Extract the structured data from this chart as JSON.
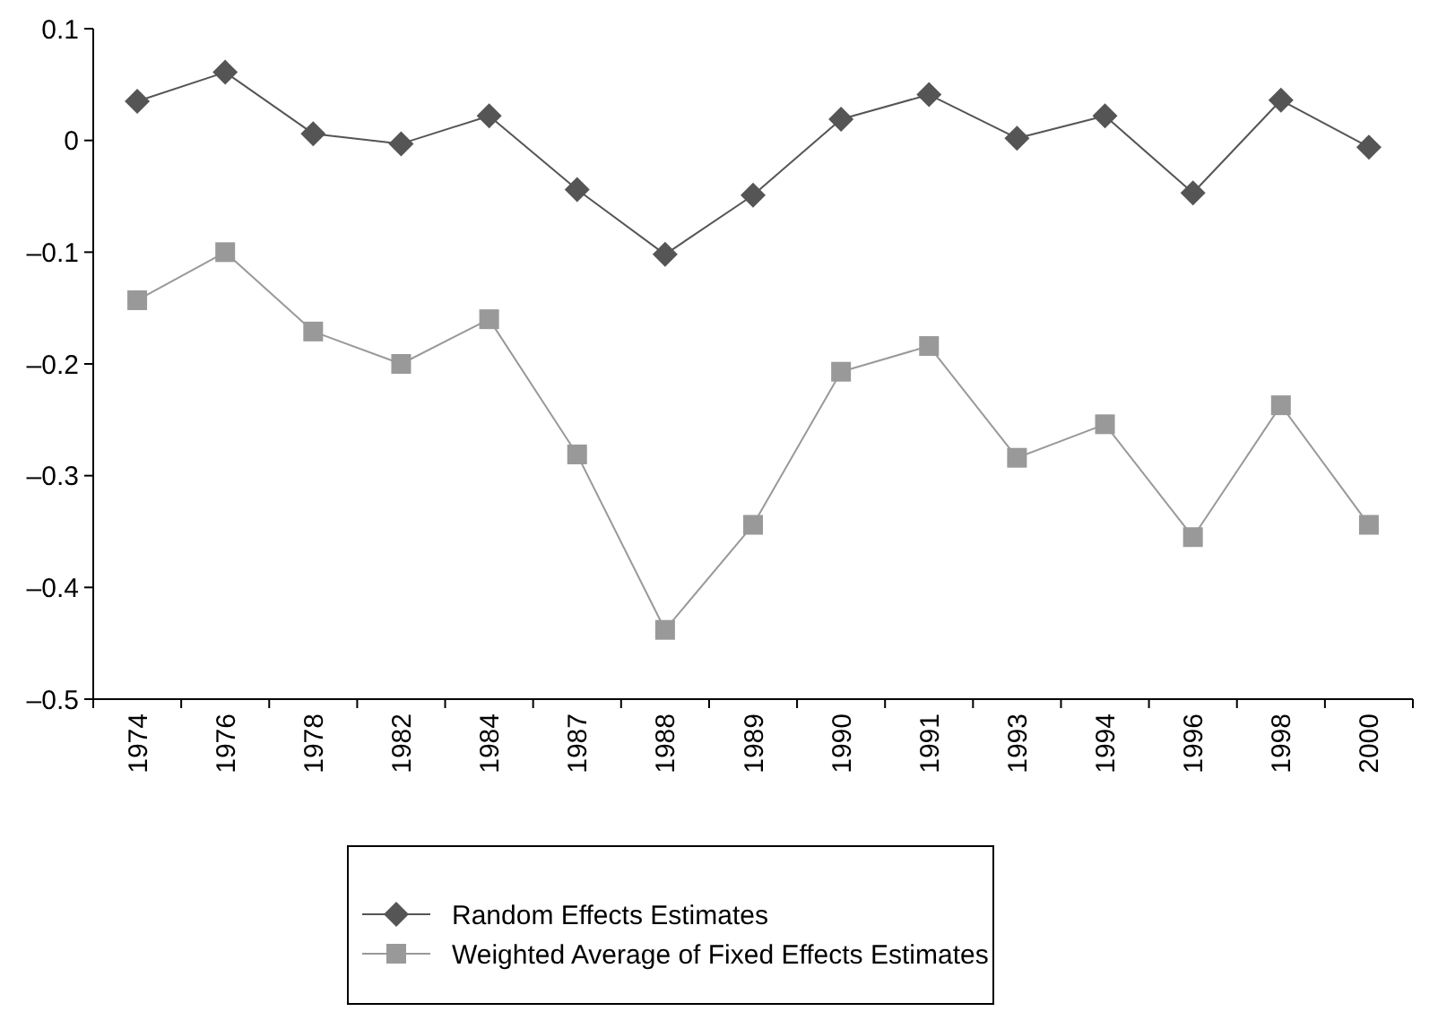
{
  "chart_data": {
    "type": "line",
    "categories": [
      "1974",
      "1976",
      "1978",
      "1982",
      "1984",
      "1987",
      "1988",
      "1989",
      "1990",
      "1991",
      "1993",
      "1994",
      "1996",
      "1998",
      "2000"
    ],
    "ylim": [
      -0.5,
      0.1
    ],
    "yticks": [
      {
        "value": 0.1,
        "label": "0.1"
      },
      {
        "value": 0,
        "label": "0"
      },
      {
        "value": -0.1,
        "label": "–0.1"
      },
      {
        "value": -0.2,
        "label": "–0.2"
      },
      {
        "value": -0.3,
        "label": "–0.3"
      },
      {
        "value": -0.4,
        "label": "–0.4"
      },
      {
        "value": -0.5,
        "label": "–0.5"
      }
    ],
    "legend": "bottom",
    "grid": false,
    "series": [
      {
        "name": "Random Effects Estimates",
        "color": "#555555",
        "marker": "diamond",
        "values": [
          0.035,
          0.061,
          0.006,
          -0.003,
          0.022,
          -0.044,
          -0.102,
          -0.049,
          0.019,
          0.041,
          0.002,
          0.022,
          -0.047,
          0.036,
          -0.006
        ]
      },
      {
        "name": "Weighted Average of Fixed Effects Estimates",
        "color": "#999999",
        "marker": "square",
        "values": [
          -0.143,
          -0.1,
          -0.171,
          -0.2,
          -0.16,
          -0.281,
          -0.438,
          -0.344,
          -0.207,
          -0.184,
          -0.284,
          -0.254,
          -0.355,
          -0.237,
          -0.344
        ]
      }
    ]
  }
}
